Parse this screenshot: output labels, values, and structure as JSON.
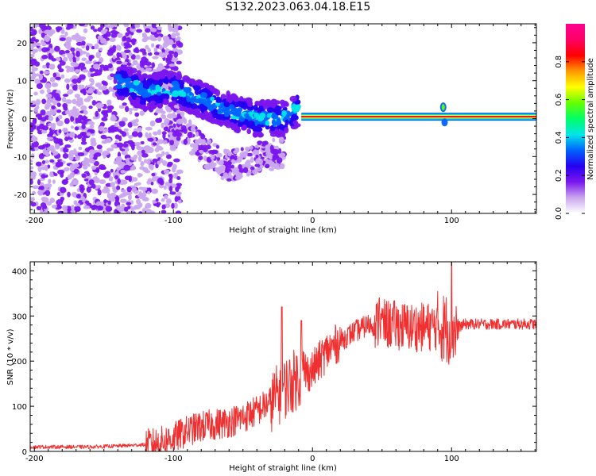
{
  "title": "S132.2023.063.04.18.E15",
  "chart_data": [
    {
      "type": "heatmap",
      "name": "spectrogram",
      "xlabel": "Height of straight line (km)",
      "ylabel": "Frequency (Hz)",
      "xlim": [
        -203,
        161
      ],
      "ylim": [
        -25,
        25
      ],
      "xticks": [
        -200,
        -100,
        0,
        100
      ],
      "yticks": [
        -20,
        -10,
        0,
        10,
        20
      ],
      "colorbar": {
        "label": "Normalized spectral amplitude",
        "range": [
          0,
          1
        ],
        "ticks": [
          0.0,
          0.2,
          0.4,
          0.6,
          0.8
        ],
        "colormap": [
          "#ffffff",
          "#c9a6ee",
          "#7b16ee",
          "#2500f0",
          "#0064ff",
          "#00e6e6",
          "#00ff66",
          "#66ff00",
          "#ffff00",
          "#ff9900",
          "#ff0000",
          "#ff0066",
          "#ff0090"
        ]
      },
      "features": {
        "noise_region_km": [
          -203,
          -95
        ],
        "converging_trace": {
          "km": [
            -140,
            -120,
            -100,
            -80,
            -60,
            -40,
            -20,
            -10
          ],
          "hz": [
            10,
            7,
            8,
            5,
            2,
            0,
            0,
            3
          ]
        },
        "lower_tail": {
          "km": [
            -100,
            -80,
            -60,
            -40,
            -20
          ],
          "hz": [
            0,
            -8,
            -13,
            -10,
            -9
          ]
        },
        "steady_band": {
          "km_start": -8,
          "km_end": 161,
          "hz": 0.5
        },
        "disturbance_near_km": 95
      }
    },
    {
      "type": "line",
      "name": "snr",
      "xlabel": "Height of straight line (km)",
      "ylabel": "SNR (10 * v/v)",
      "xlim": [
        -203,
        161
      ],
      "ylim": [
        0,
        420
      ],
      "xticks": [
        -200,
        -100,
        0,
        100
      ],
      "yticks": [
        0,
        100,
        200,
        300,
        400
      ],
      "color": "#f03030",
      "baseline": {
        "x": [
          -203,
          -180,
          -160,
          -140,
          -120,
          -110,
          -100,
          -90,
          -80,
          -70,
          -60,
          -50,
          -40,
          -30,
          -20,
          -10,
          0,
          10,
          20,
          30,
          40,
          50,
          60,
          70,
          80,
          90,
          100,
          110,
          120,
          130,
          140,
          150,
          161
        ],
        "y": [
          10,
          10,
          10,
          12,
          15,
          20,
          30,
          45,
          55,
          60,
          65,
          75,
          90,
          110,
          140,
          165,
          180,
          220,
          245,
          265,
          280,
          282,
          280,
          275,
          275,
          278,
          270,
          282,
          282,
          282,
          282,
          282,
          282
        ]
      },
      "peaks": [
        {
          "x": -22,
          "y": 320
        },
        {
          "x": -8,
          "y": 290
        },
        {
          "x": 48,
          "y": 340
        },
        {
          "x": 100,
          "y": 420
        }
      ]
    }
  ]
}
